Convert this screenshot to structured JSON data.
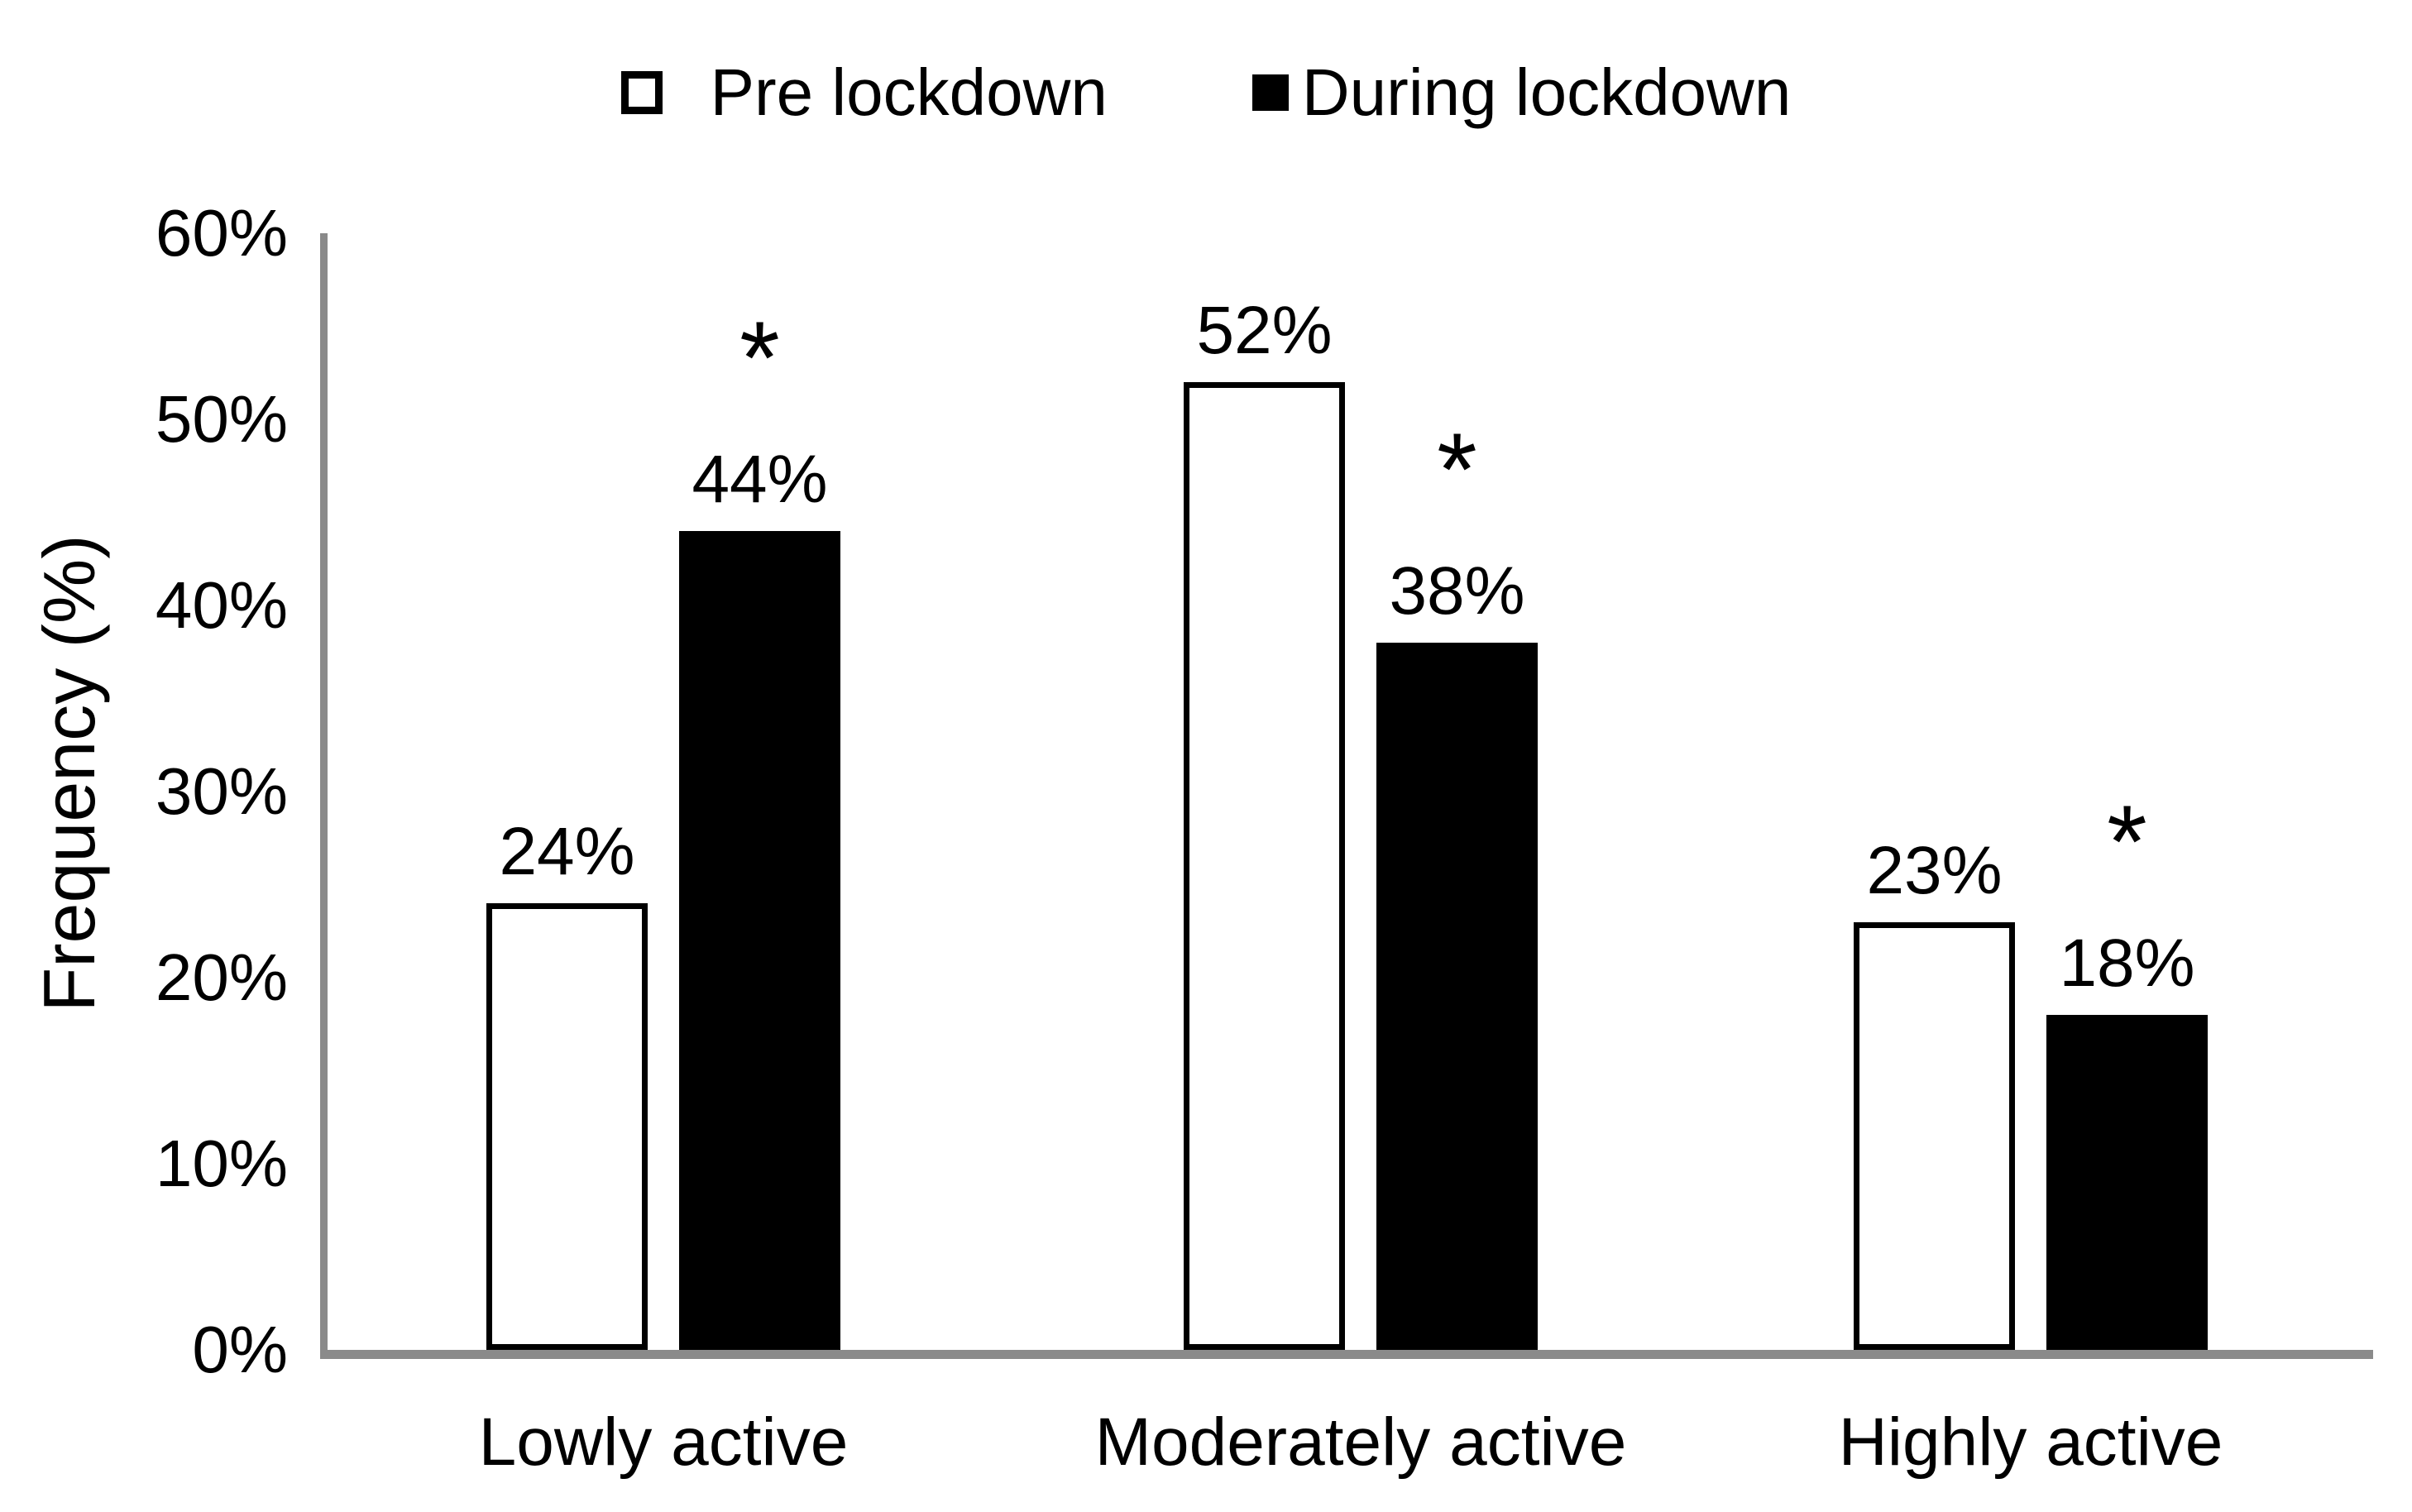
{
  "chart_data": {
    "type": "bar",
    "title": "",
    "categories": [
      "Lowly active",
      "Moderately active",
      "Highly active"
    ],
    "series": [
      {
        "name": "Pre lockdown",
        "fill": "white",
        "values": [
          24,
          52,
          23
        ],
        "labels": [
          "24%",
          "52%",
          "23%"
        ],
        "significant": [
          false,
          false,
          false
        ]
      },
      {
        "name": "During lockdown",
        "fill": "black",
        "values": [
          44,
          38,
          18
        ],
        "labels": [
          "44%",
          "38%",
          "18%"
        ],
        "significant": [
          true,
          true,
          true
        ]
      }
    ],
    "xlabel": "",
    "ylabel": "Frequency (%)",
    "ylim": [
      0,
      60
    ],
    "y_ticks": [
      "0%",
      "10%",
      "20%",
      "30%",
      "40%",
      "50%",
      "60%"
    ],
    "y_tick_values": [
      0,
      10,
      20,
      30,
      40,
      50,
      60
    ],
    "grid": false,
    "legend_position": "top-center",
    "significance_marker": "*",
    "colors": {
      "axis_line": "#8a8a8a",
      "bar_pre_fill": "#ffffff",
      "bar_pre_border": "#000000",
      "bar_during_fill": "#000000",
      "text": "#000000",
      "background": "#ffffff"
    }
  }
}
